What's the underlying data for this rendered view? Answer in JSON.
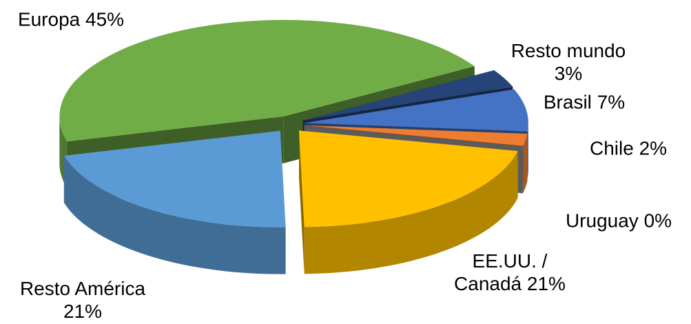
{
  "chart_data": {
    "type": "pie",
    "categories": [
      "Europa",
      "Resto mundo",
      "Brasil",
      "Chile",
      "Uruguay",
      "EE.UU. / Canadá",
      "Resto América"
    ],
    "values": [
      45,
      3,
      7,
      2,
      0,
      21,
      21
    ],
    "value_labels": [
      "45%",
      "3%",
      "7%",
      "2%",
      "0%",
      "21%",
      "21%"
    ],
    "colors": [
      "#70ad47",
      "#264478",
      "#4472c4",
      "#ed7d31",
      "#a5a5a5",
      "#ffc000",
      "#5b9bd5"
    ]
  }
}
